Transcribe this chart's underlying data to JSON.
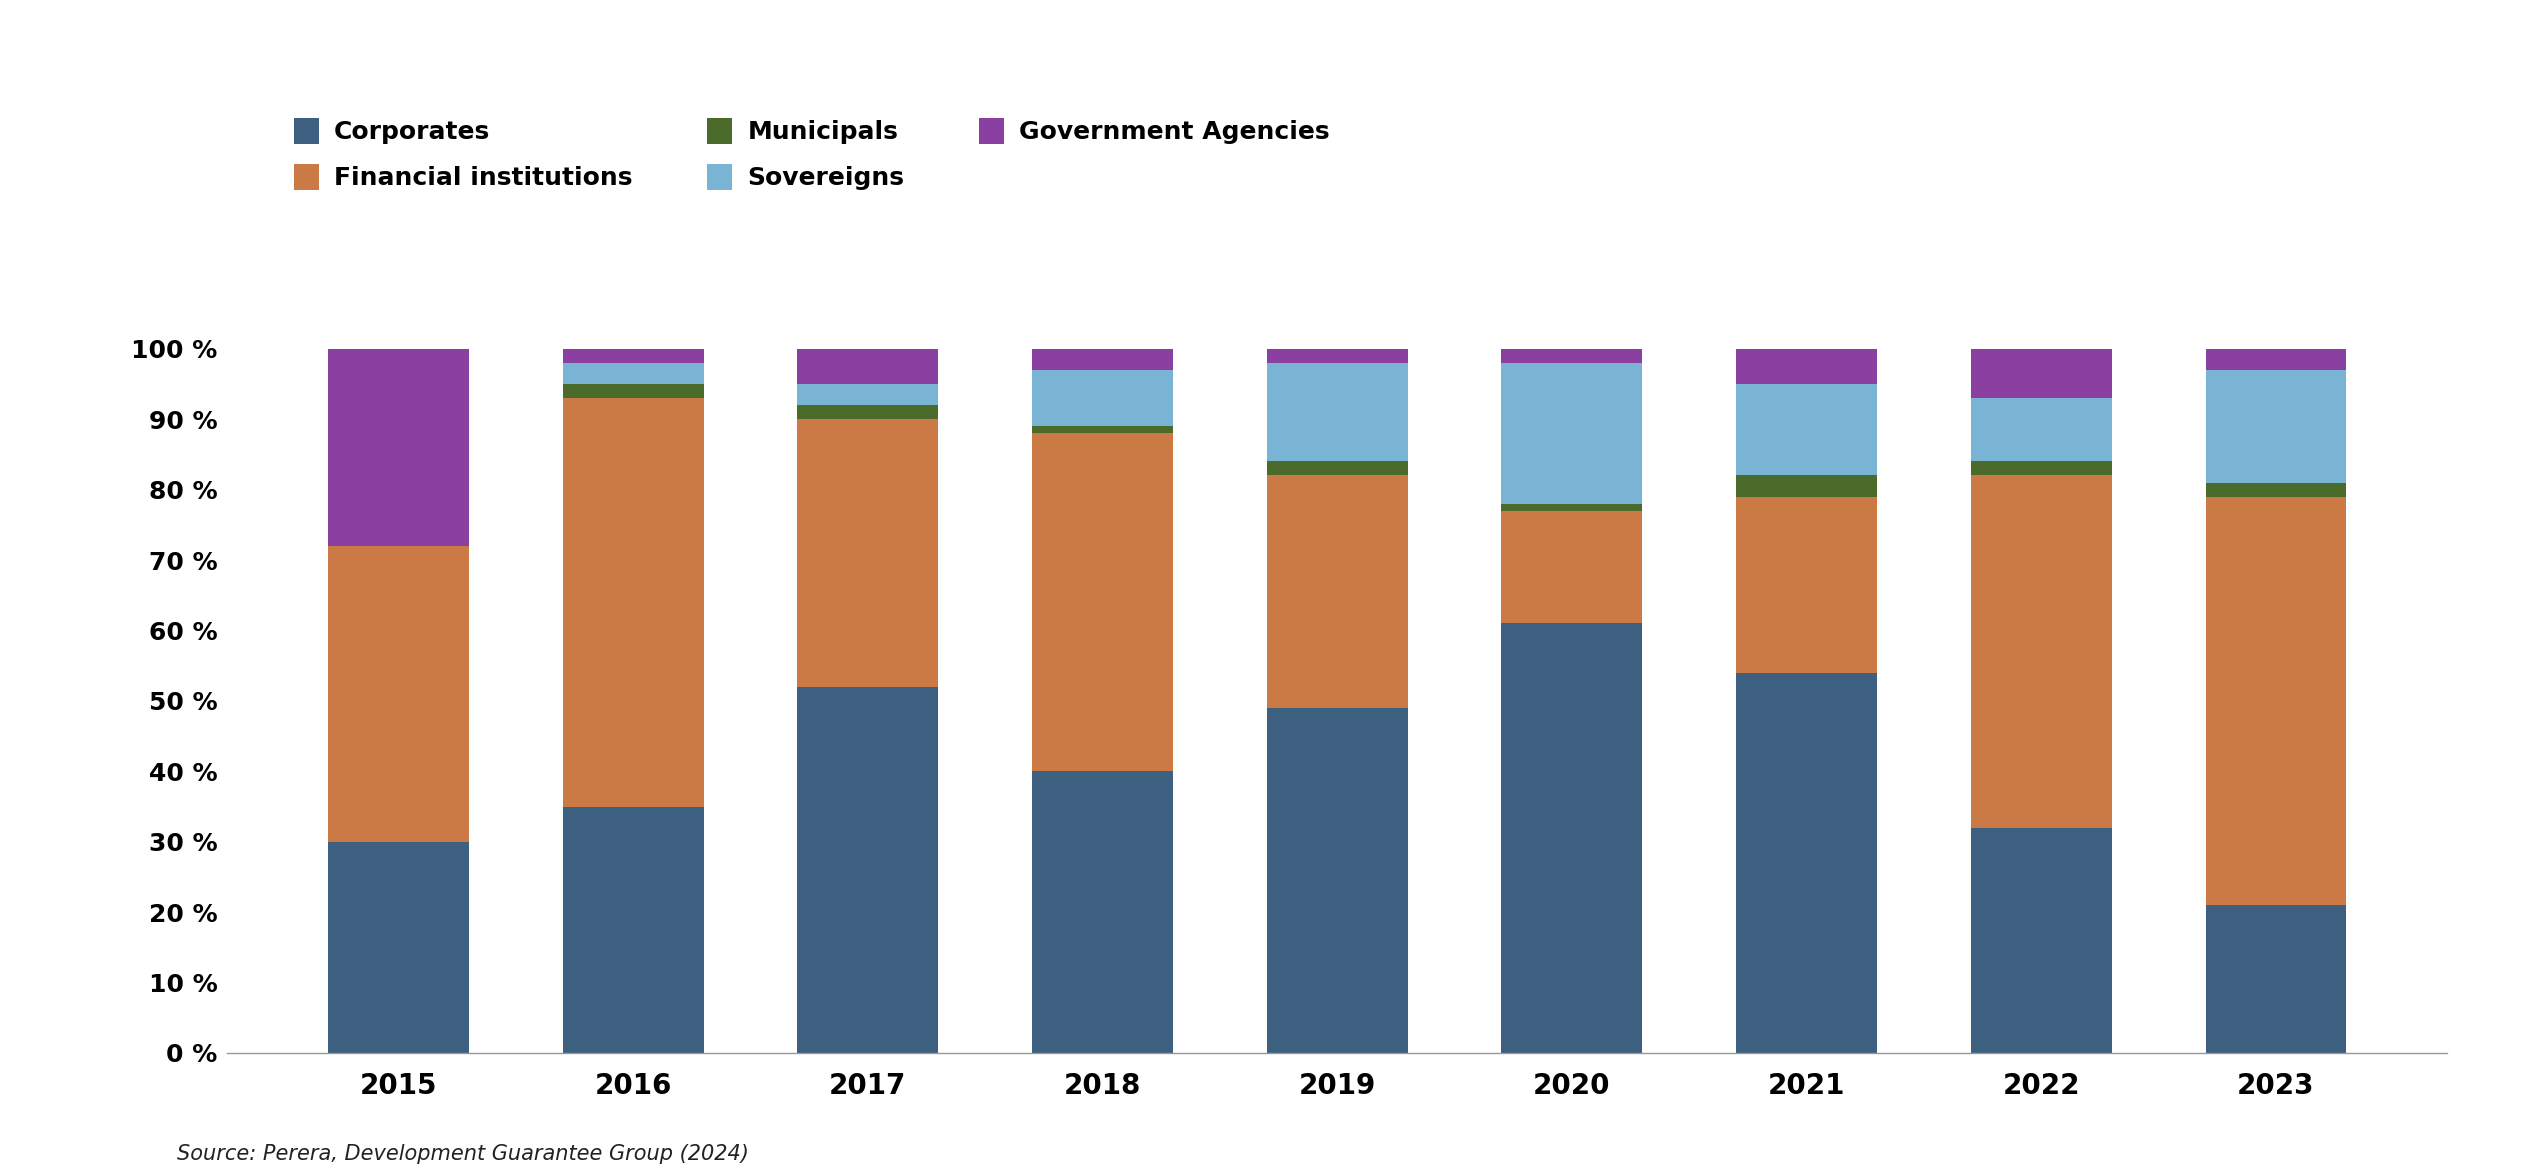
{
  "years": [
    "2015",
    "2016",
    "2017",
    "2018",
    "2019",
    "2020",
    "2021",
    "2022",
    "2023"
  ],
  "corporates": [
    30,
    35,
    52,
    40,
    49,
    61,
    54,
    32,
    21
  ],
  "financial_institutions": [
    42,
    58,
    38,
    48,
    33,
    16,
    25,
    50,
    58
  ],
  "municipals": [
    0,
    2,
    2,
    1,
    2,
    1,
    3,
    2,
    2
  ],
  "sovereigns": [
    0,
    3,
    3,
    8,
    14,
    20,
    13,
    9,
    16
  ],
  "government_agencies": [
    28,
    2,
    5,
    3,
    2,
    2,
    5,
    7,
    3
  ],
  "colors": {
    "corporates": "#3d6080",
    "financial_institutions": "#cc7a45",
    "municipals": "#4a6b2a",
    "sovereigns": "#7ab4d4",
    "government_agencies": "#8b3fa0"
  },
  "legend_labels": {
    "corporates": "Corporates",
    "financial_institutions": "Financial institutions",
    "municipals": "Municipals",
    "sovereigns": "Sovereigns",
    "government_agencies": "Government Agencies"
  },
  "ytick_labels": [
    "0 %",
    "10 %",
    "20 %",
    "30 %",
    "40 %",
    "50 %",
    "60 %",
    "70 %",
    "80 %",
    "90 %",
    "100 %"
  ],
  "ytick_values": [
    0,
    10,
    20,
    30,
    40,
    50,
    60,
    70,
    80,
    90,
    100
  ],
  "source_text": "Source: Perera, Development Guarantee Group (2024)",
  "background_color": "#ffffff",
  "bar_width": 0.6,
  "tick_fontsize": 18,
  "legend_fontsize": 18,
  "source_fontsize": 15
}
